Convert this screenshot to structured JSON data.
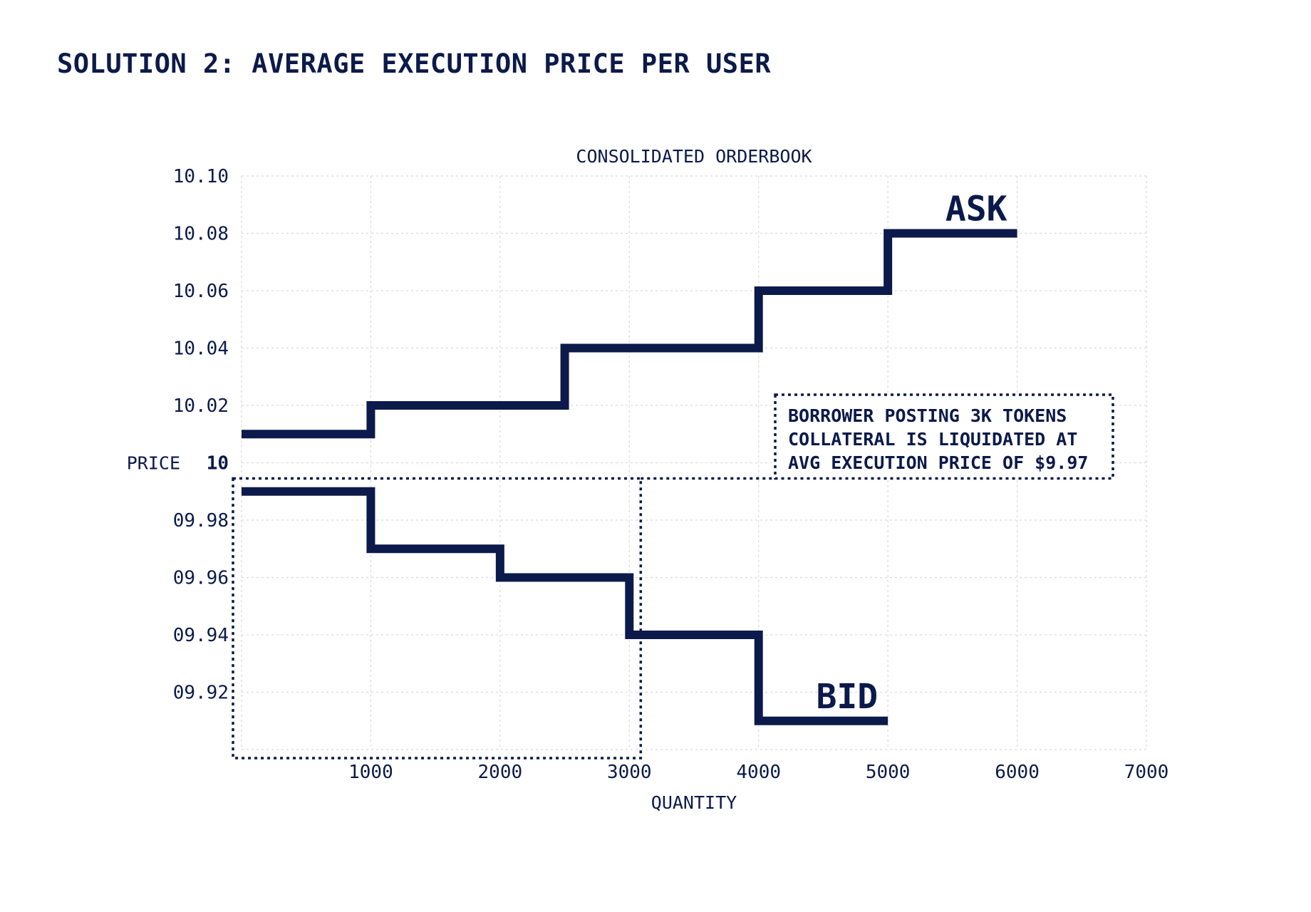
{
  "title": "SOLUTION 2: AVERAGE EXECUTION PRICE PER USER",
  "colors": {
    "ink": "#0b1a4a",
    "grid": "#d6d9e0"
  },
  "chart_data": {
    "type": "line",
    "subtype": "step",
    "title": "CONSOLIDATED ORDERBOOK",
    "xlabel": "QUANTITY",
    "ylabel": "PRICE",
    "xlim": [
      0,
      7000
    ],
    "ylim": [
      9.9,
      10.1
    ],
    "xticks": [
      1000,
      2000,
      3000,
      4000,
      5000,
      6000,
      7000
    ],
    "xtick_labels": [
      "1000",
      "2000",
      "3000",
      "4000",
      "5000",
      "6000",
      "7000"
    ],
    "yticks": [
      10.1,
      10.08,
      10.06,
      10.04,
      10.02,
      10.0,
      9.98,
      9.96,
      9.94,
      9.92
    ],
    "ytick_labels": [
      "10.10",
      "10.08",
      "10.06",
      "10.04",
      "10.02",
      "10",
      "09.98",
      "09.96",
      "09.94",
      "09.92"
    ],
    "emphasized_ytick": "10",
    "grid": true,
    "series": [
      {
        "name": "ASK",
        "points": [
          [
            0,
            10.01
          ],
          [
            1000,
            10.01
          ],
          [
            1000,
            10.02
          ],
          [
            2500,
            10.02
          ],
          [
            2500,
            10.04
          ],
          [
            4000,
            10.04
          ],
          [
            4000,
            10.06
          ],
          [
            5000,
            10.06
          ],
          [
            5000,
            10.08
          ],
          [
            6000,
            10.08
          ]
        ]
      },
      {
        "name": "BID",
        "points": [
          [
            0,
            9.99
          ],
          [
            1000,
            9.99
          ],
          [
            1000,
            9.97
          ],
          [
            2000,
            9.97
          ],
          [
            2000,
            9.96
          ],
          [
            3000,
            9.96
          ],
          [
            3000,
            9.94
          ],
          [
            4000,
            9.94
          ],
          [
            4000,
            9.91
          ],
          [
            5000,
            9.91
          ]
        ]
      }
    ],
    "highlight_region": {
      "x": [
        0,
        3000
      ],
      "y": [
        9.9,
        10.0
      ]
    },
    "annotation": {
      "lines": [
        "BORROWER POSTING 3K TOKENS",
        "COLLATERAL IS LIQUIDATED AT",
        "AVG EXECUTION PRICE OF $9.97"
      ]
    }
  }
}
